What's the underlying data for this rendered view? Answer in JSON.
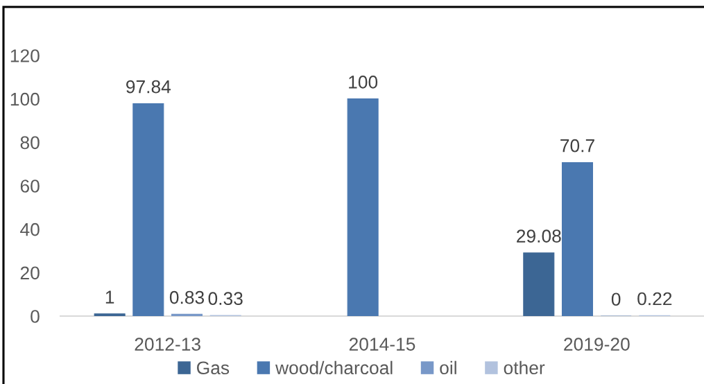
{
  "chart_data": {
    "type": "bar",
    "categories": [
      "2012-13",
      "2014-15",
      "2019-20"
    ],
    "series": [
      {
        "name": "Gas",
        "color": "#3c6694",
        "values": [
          1,
          null,
          29.08
        ]
      },
      {
        "name": "wood/charcoal",
        "color": "#4a78b0",
        "values": [
          97.84,
          100,
          70.7
        ]
      },
      {
        "name": "oil",
        "color": "#7898c8",
        "values": [
          0.83,
          null,
          0
        ]
      },
      {
        "name": "other",
        "color": "#b2c2de",
        "values": [
          0.33,
          null,
          0.22
        ]
      }
    ],
    "ylim": [
      0,
      120
    ],
    "yticks": [
      0,
      20,
      40,
      60,
      80,
      100,
      120
    ],
    "grid": false,
    "legend": "bottom",
    "data_labels": true
  }
}
